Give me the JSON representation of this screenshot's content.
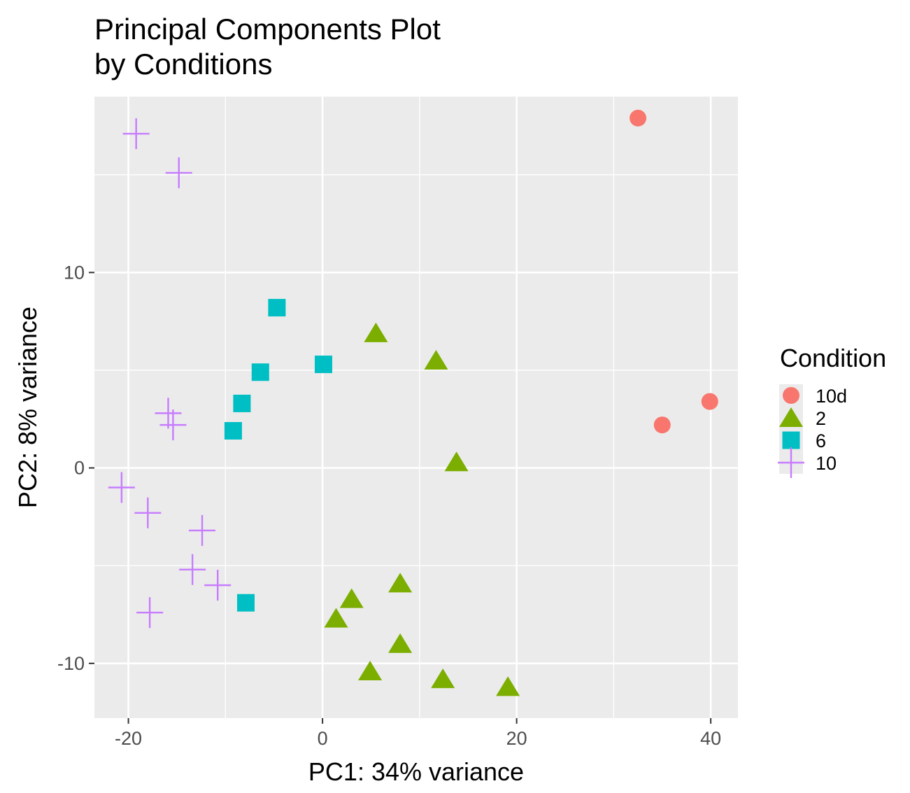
{
  "chart_data": {
    "type": "scatter",
    "title_lines": [
      "Principal Components Plot",
      "by Conditions"
    ],
    "xlabel": "PC1: 34% variance",
    "ylabel": "PC2: 8% variance",
    "xlim": [
      -23.5,
      42.8
    ],
    "ylim": [
      -12.8,
      19.0
    ],
    "x_ticks": [
      -20,
      0,
      20,
      40
    ],
    "x_minor": [
      -10,
      10,
      30
    ],
    "y_ticks": [
      -10,
      0,
      10
    ],
    "y_minor": [
      -5,
      5,
      15
    ],
    "x_tick_labels": [
      "-20",
      "0",
      "20",
      "40"
    ],
    "y_tick_labels": [
      "-10",
      "0",
      "10"
    ],
    "grid": true,
    "panel_background": "#ebebeb",
    "legend": {
      "title": "Condition",
      "placement": "right",
      "items": [
        {
          "label": "10d",
          "color": "#f8766d",
          "shape": "circle"
        },
        {
          "label": "2",
          "color": "#7cae00",
          "shape": "triangle"
        },
        {
          "label": "6",
          "color": "#00bfc4",
          "shape": "square"
        },
        {
          "label": "10",
          "color": "#c77cff",
          "shape": "plus"
        }
      ]
    },
    "series": [
      {
        "name": "10d",
        "color": "#f8766d",
        "shape": "circle",
        "points": [
          [
            32.5,
            17.9
          ],
          [
            35.0,
            2.2
          ],
          [
            39.9,
            3.4
          ]
        ]
      },
      {
        "name": "2",
        "color": "#7cae00",
        "shape": "triangle",
        "points": [
          [
            5.5,
            6.9
          ],
          [
            11.7,
            5.5
          ],
          [
            13.8,
            0.3
          ],
          [
            8.0,
            -5.9
          ],
          [
            3.0,
            -6.7
          ],
          [
            1.4,
            -7.7
          ],
          [
            8.0,
            -9.0
          ],
          [
            4.9,
            -10.4
          ],
          [
            12.4,
            -10.8
          ],
          [
            19.1,
            -11.2
          ]
        ]
      },
      {
        "name": "6",
        "color": "#00bfc4",
        "shape": "square",
        "points": [
          [
            -4.7,
            8.2
          ],
          [
            0.1,
            5.3
          ],
          [
            -6.4,
            4.9
          ],
          [
            -8.3,
            3.3
          ],
          [
            -9.2,
            1.9
          ],
          [
            -7.9,
            -6.9
          ]
        ]
      },
      {
        "name": "10",
        "color": "#c77cff",
        "shape": "plus",
        "points": [
          [
            -19.2,
            17.1
          ],
          [
            -14.8,
            15.1
          ],
          [
            -15.9,
            2.8
          ],
          [
            -15.4,
            2.2
          ],
          [
            -20.7,
            -1.0
          ],
          [
            -18.0,
            -2.3
          ],
          [
            -12.4,
            -3.2
          ],
          [
            -13.4,
            -5.2
          ],
          [
            -10.8,
            -6.0
          ],
          [
            -17.8,
            -7.4
          ]
        ]
      }
    ]
  }
}
